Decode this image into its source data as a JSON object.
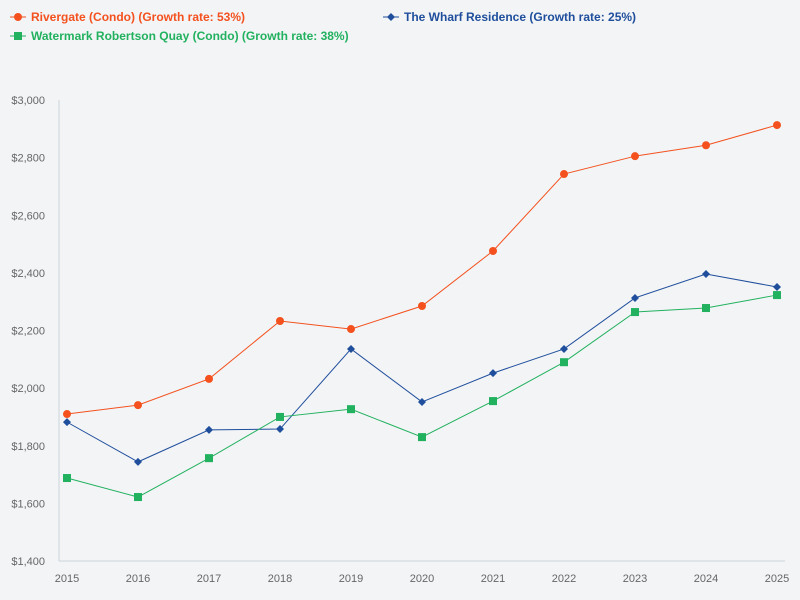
{
  "chart_data": {
    "type": "line",
    "title": "",
    "xlabel": "",
    "ylabel": "",
    "x": [
      2015,
      2016,
      2017,
      2018,
      2019,
      2020,
      2021,
      2022,
      2023,
      2024,
      2025
    ],
    "ylim": [
      1400,
      3000
    ],
    "yticks": [
      1400,
      1600,
      1800,
      2000,
      2200,
      2400,
      2600,
      2800,
      3000
    ],
    "ytick_labels": [
      "$1,400",
      "$1,600",
      "$1,800",
      "$2,000",
      "$2,200",
      "$2,400",
      "$2,600",
      "$2,800",
      "$3,000"
    ],
    "xtick_labels": [
      "2015",
      "2016",
      "2017",
      "2018",
      "2019",
      "2020",
      "2021",
      "2022",
      "2023",
      "2024",
      "2025"
    ],
    "grid": false,
    "legend_position": "top-left",
    "series": [
      {
        "name": "Rivergate (Condo) (Growth rate: 53%)",
        "color": "#f4511e",
        "marker": "circle",
        "values": [
          1910,
          1941,
          2032,
          2233,
          2205,
          2285,
          2476,
          2743,
          2805,
          2843,
          2913
        ]
      },
      {
        "name": "The Wharf Residence (Growth rate: 25%)",
        "color": "#1f4e9c",
        "marker": "diamond",
        "values": [
          1882,
          1744,
          1855,
          1858,
          2136,
          1952,
          2052,
          2136,
          2313,
          2396,
          2351
        ]
      },
      {
        "name": "Watermark Robertson Quay (Condo) (Growth rate: 38%)",
        "color": "#22b15e",
        "marker": "square",
        "values": [
          1688,
          1622,
          1757,
          1900,
          1927,
          1830,
          1955,
          2090,
          2264,
          2278,
          2323
        ]
      }
    ]
  }
}
